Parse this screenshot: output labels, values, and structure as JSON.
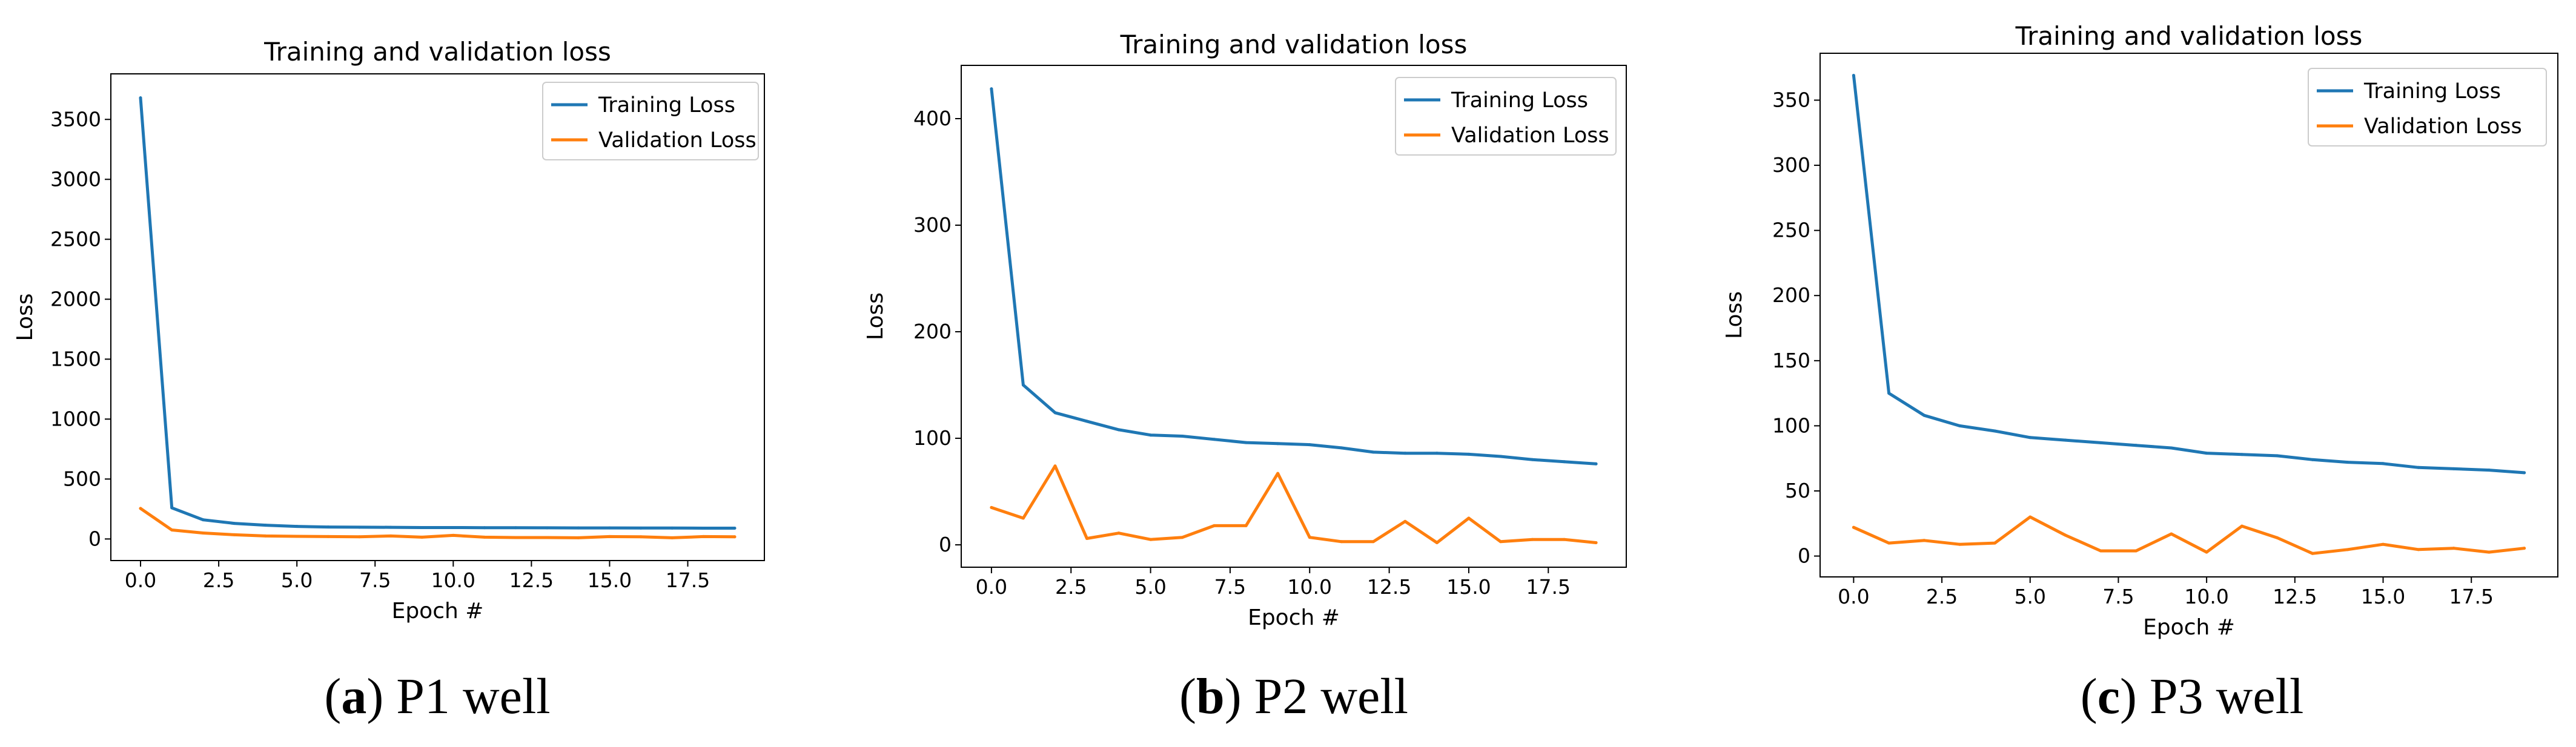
{
  "panels": [
    {
      "caption": {
        "prefix": "(",
        "letter": "a",
        "suffix": ") P1 well"
      },
      "chart_data": {
        "type": "line",
        "title": "Training and validation loss",
        "xlabel": "Epoch #",
        "ylabel": "Loss",
        "x": [
          0,
          1,
          2,
          3,
          4,
          5,
          6,
          7,
          8,
          9,
          10,
          11,
          12,
          13,
          14,
          15,
          16,
          17,
          18,
          19
        ],
        "xlim": [
          -0.95,
          19.95
        ],
        "ylim": [
          -180,
          3880
        ],
        "xticks": [
          0,
          2.5,
          5,
          7.5,
          10,
          12.5,
          15,
          17.5
        ],
        "xtick_labels": [
          "0.0",
          "2.5",
          "5.0",
          "7.5",
          "10.0",
          "12.5",
          "15.0",
          "17.5"
        ],
        "yticks": [
          0,
          500,
          1000,
          1500,
          2000,
          2500,
          3000,
          3500
        ],
        "ytick_labels": [
          "0",
          "500",
          "1000",
          "1500",
          "2000",
          "2500",
          "3000",
          "3500"
        ],
        "grid": false,
        "legend_position": "upper right",
        "series": [
          {
            "name": "Training Loss",
            "color": "#1f77b4",
            "values": [
              3680,
              260,
              160,
              130,
              115,
              105,
              100,
              98,
              97,
              95,
              95,
              94,
              94,
              93,
              92,
              92,
              91,
              91,
              90,
              90
            ]
          },
          {
            "name": "Validation Loss",
            "color": "#ff7f0e",
            "values": [
              255,
              75,
              50,
              35,
              25,
              22,
              20,
              18,
              25,
              15,
              30,
              15,
              12,
              12,
              10,
              20,
              18,
              10,
              20,
              18
            ]
          }
        ]
      }
    },
    {
      "caption": {
        "prefix": "(",
        "letter": "b",
        "suffix": ") P2 well"
      },
      "chart_data": {
        "type": "line",
        "title": "Training and validation loss",
        "xlabel": "Epoch #",
        "ylabel": "Loss",
        "x": [
          0,
          1,
          2,
          3,
          4,
          5,
          6,
          7,
          8,
          9,
          10,
          11,
          12,
          13,
          14,
          15,
          16,
          17,
          18,
          19
        ],
        "xlim": [
          -0.95,
          19.95
        ],
        "ylim": [
          -21,
          450
        ],
        "xticks": [
          0,
          2.5,
          5,
          7.5,
          10,
          12.5,
          15,
          17.5
        ],
        "xtick_labels": [
          "0.0",
          "2.5",
          "5.0",
          "7.5",
          "10.0",
          "12.5",
          "15.0",
          "17.5"
        ],
        "yticks": [
          0,
          100,
          200,
          300,
          400
        ],
        "ytick_labels": [
          "0",
          "100",
          "200",
          "300",
          "400"
        ],
        "grid": false,
        "legend_position": "upper right",
        "series": [
          {
            "name": "Training Loss",
            "color": "#1f77b4",
            "values": [
              428,
              150,
              124,
              116,
              108,
              103,
              102,
              99,
              96,
              95,
              94,
              91,
              87,
              86,
              86,
              85,
              83,
              80,
              78,
              76
            ]
          },
          {
            "name": "Validation Loss",
            "color": "#ff7f0e",
            "values": [
              35,
              25,
              74,
              6,
              11,
              5,
              7,
              18,
              18,
              67,
              7,
              3,
              3,
              22,
              2,
              25,
              3,
              5,
              5,
              2
            ]
          }
        ]
      }
    },
    {
      "caption": {
        "prefix": "(",
        "letter": "c",
        "suffix": ") P3 well"
      },
      "chart_data": {
        "type": "line",
        "title": "Training and validation loss",
        "xlabel": "Epoch #",
        "ylabel": "Loss",
        "x": [
          0,
          1,
          2,
          3,
          4,
          5,
          6,
          7,
          8,
          9,
          10,
          11,
          12,
          13,
          14,
          15,
          16,
          17,
          18,
          19
        ],
        "xlim": [
          -0.95,
          19.95
        ],
        "ylim": [
          -16,
          386
        ],
        "xticks": [
          0,
          2.5,
          5,
          7.5,
          10,
          12.5,
          15,
          17.5
        ],
        "xtick_labels": [
          "0.0",
          "2.5",
          "5.0",
          "7.5",
          "10.0",
          "12.5",
          "15.0",
          "17.5"
        ],
        "yticks": [
          0,
          50,
          100,
          150,
          200,
          250,
          300,
          350
        ],
        "ytick_labels": [
          "0",
          "50",
          "100",
          "150",
          "200",
          "250",
          "300",
          "350"
        ],
        "grid": false,
        "legend_position": "upper right",
        "series": [
          {
            "name": "Training Loss",
            "color": "#1f77b4",
            "values": [
              369,
              125,
              108,
              100,
              96,
              91,
              89,
              87,
              85,
              83,
              79,
              78,
              77,
              74,
              72,
              71,
              68,
              67,
              66,
              64
            ]
          },
          {
            "name": "Validation Loss",
            "color": "#ff7f0e",
            "values": [
              22,
              10,
              12,
              9,
              10,
              30,
              16,
              4,
              4,
              17,
              3,
              23,
              14,
              2,
              5,
              9,
              5,
              6,
              3,
              6
            ]
          }
        ]
      }
    }
  ]
}
